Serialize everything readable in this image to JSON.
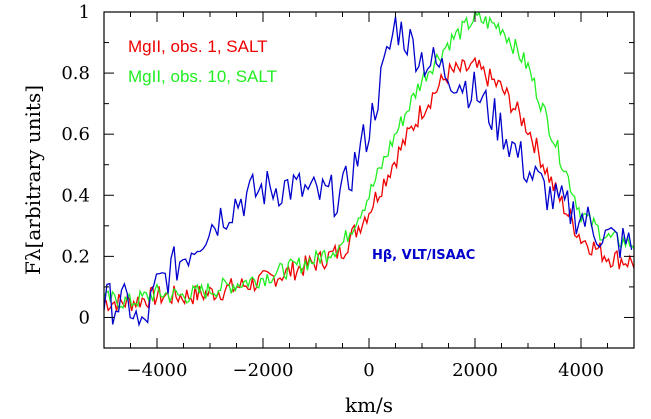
{
  "chart_data": {
    "type": "line",
    "title": "",
    "xlabel": "km/s",
    "ylabel": "Fλ[arbitrary units]",
    "xlim": [
      -5000,
      5000
    ],
    "ylim": [
      -0.1,
      1.0
    ],
    "xticks": [
      -4000,
      -2000,
      0,
      2000,
      4000
    ],
    "xtick_labels": [
      "−4000",
      "−2000",
      "0",
      "2000",
      "4000"
    ],
    "yticks": [
      0,
      0.2,
      0.4,
      0.6,
      0.8,
      1
    ],
    "ytick_labels": [
      "0",
      "0.2",
      "0.4",
      "0.6",
      "0.8",
      "1"
    ],
    "grid": false,
    "legend": {
      "placement": "top-left",
      "entries": [
        {
          "name": "MgII, obs. 1, SALT",
          "color": "#ee0000"
        },
        {
          "name": "MgII, obs. 10, SALT",
          "color": "#22ee22"
        }
      ]
    },
    "annotations": [
      {
        "text": "Hβ,  VLT/ISAAC",
        "color": "#0000cc"
      }
    ],
    "series": [
      {
        "name": "MgII, obs. 1, SALT",
        "color": "#ee0000",
        "x": [
          -5000,
          -4500,
          -4000,
          -3500,
          -3000,
          -2500,
          -2000,
          -1500,
          -1000,
          -500,
          0,
          500,
          1000,
          1500,
          2000,
          2500,
          3000,
          3500,
          4000,
          4500,
          5000
        ],
        "y": [
          0.05,
          0.05,
          0.07,
          0.07,
          0.08,
          0.1,
          0.12,
          0.15,
          0.18,
          0.22,
          0.35,
          0.52,
          0.68,
          0.8,
          0.82,
          0.75,
          0.62,
          0.42,
          0.26,
          0.2,
          0.18
        ]
      },
      {
        "name": "MgII, obs. 10, SALT",
        "color": "#22ee22",
        "x": [
          -5000,
          -4500,
          -4000,
          -3500,
          -3000,
          -2500,
          -2000,
          -1500,
          -1000,
          -500,
          0,
          500,
          1000,
          1500,
          2000,
          2500,
          3000,
          3500,
          4000,
          4500,
          5000
        ],
        "y": [
          0.06,
          0.05,
          0.08,
          0.07,
          0.09,
          0.11,
          0.13,
          0.16,
          0.19,
          0.24,
          0.4,
          0.6,
          0.78,
          0.9,
          0.98,
          0.95,
          0.82,
          0.58,
          0.34,
          0.26,
          0.24
        ]
      },
      {
        "name": "Hβ,  VLT/ISAAC",
        "color": "#0000cc",
        "x": [
          -5000,
          -4500,
          -4300,
          -4000,
          -3500,
          -3000,
          -2500,
          -2000,
          -1500,
          -1000,
          -500,
          0,
          300,
          500,
          1000,
          1500,
          2000,
          2500,
          3000,
          3500,
          4000,
          4500,
          5000
        ],
        "y": [
          0.05,
          0.04,
          -0.05,
          0.1,
          0.2,
          0.3,
          0.38,
          0.42,
          0.43,
          0.4,
          0.4,
          0.62,
          0.82,
          0.96,
          0.85,
          0.8,
          0.74,
          0.62,
          0.48,
          0.38,
          0.33,
          0.26,
          0.23
        ]
      }
    ]
  }
}
